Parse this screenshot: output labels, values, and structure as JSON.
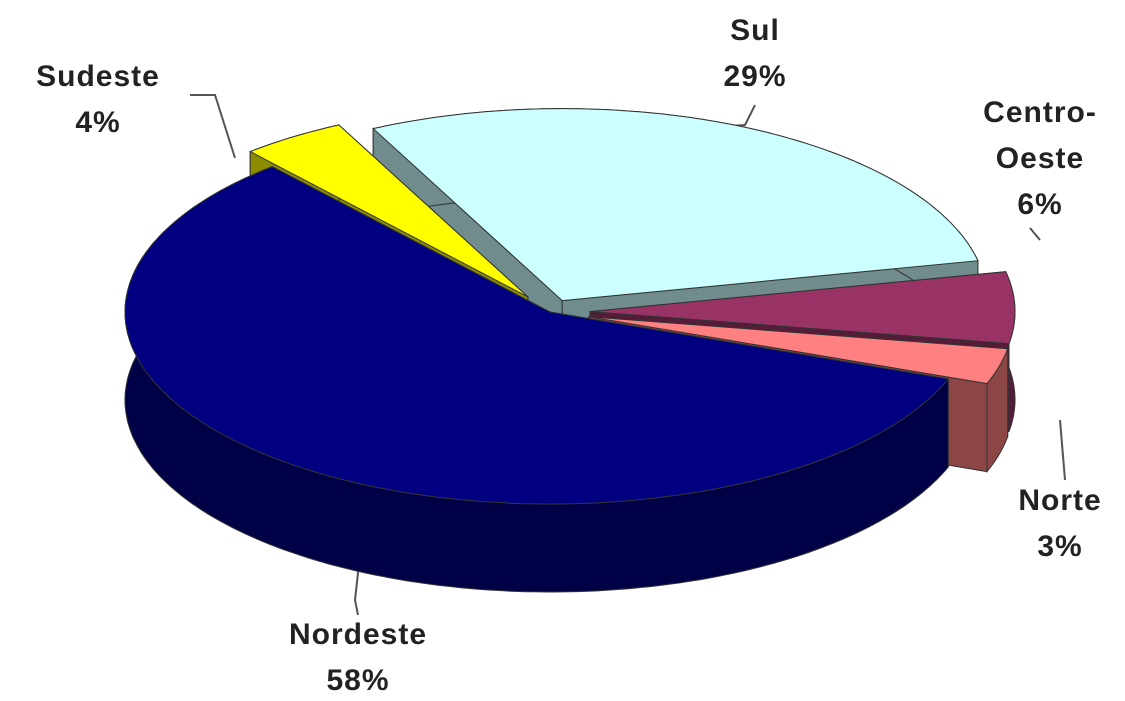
{
  "chart_data": {
    "type": "pie",
    "categories": [
      "Sul",
      "Centro-Oeste",
      "Norte",
      "Nordeste",
      "Sudeste"
    ],
    "values": [
      29,
      6,
      3,
      58,
      4
    ],
    "value_labels": [
      "29%",
      "6%",
      "3%",
      "58%",
      "4%"
    ],
    "colors": [
      "#ccffff",
      "#993366",
      "#ff8080",
      "#000080",
      "#ffff00"
    ]
  }
}
